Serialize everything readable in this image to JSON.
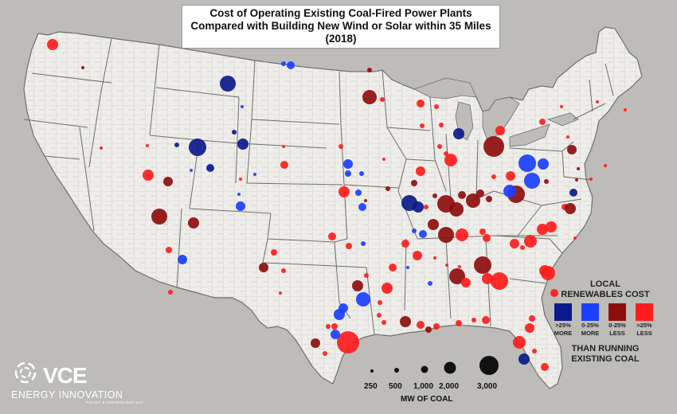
{
  "title": {
    "line1": "Cost of Operating Existing Coal-Fired Power Plants",
    "line2": "Compared with Building New Wind or Solar within 35 Miles (2018)"
  },
  "legend": {
    "title_line1": "LOCAL",
    "title_line2": "RENEWABLES COST",
    "categories": [
      {
        "line1": ">25%",
        "line2": "MORE",
        "color": "#0b1a8a"
      },
      {
        "line1": "0-25%",
        "line2": "MORE",
        "color": "#1a3fff"
      },
      {
        "line1": "0-25%",
        "line2": "LESS",
        "color": "#8e0e0e"
      },
      {
        "line1": ">25%",
        "line2": "LESS",
        "color": "#ff1c1c"
      }
    ],
    "footer_line1": "THAN RUNNING",
    "footer_line2": "EXISTING COAL"
  },
  "size_legend": {
    "labels": [
      "250",
      "500",
      "1,000",
      "2,000",
      "3,000"
    ],
    "caption": "MW OF COAL"
  },
  "logo": {
    "name": "VCE",
    "partner": "ENERGY INNOVATION",
    "partner_sub": "POLICY & TECHNOLOGY LLC"
  },
  "colors": {
    "background": "#bdbcb8",
    "land": "#eeede9",
    "county_lines": "#b9b9b6",
    "state_lines": "#6e6e6e"
  }
}
